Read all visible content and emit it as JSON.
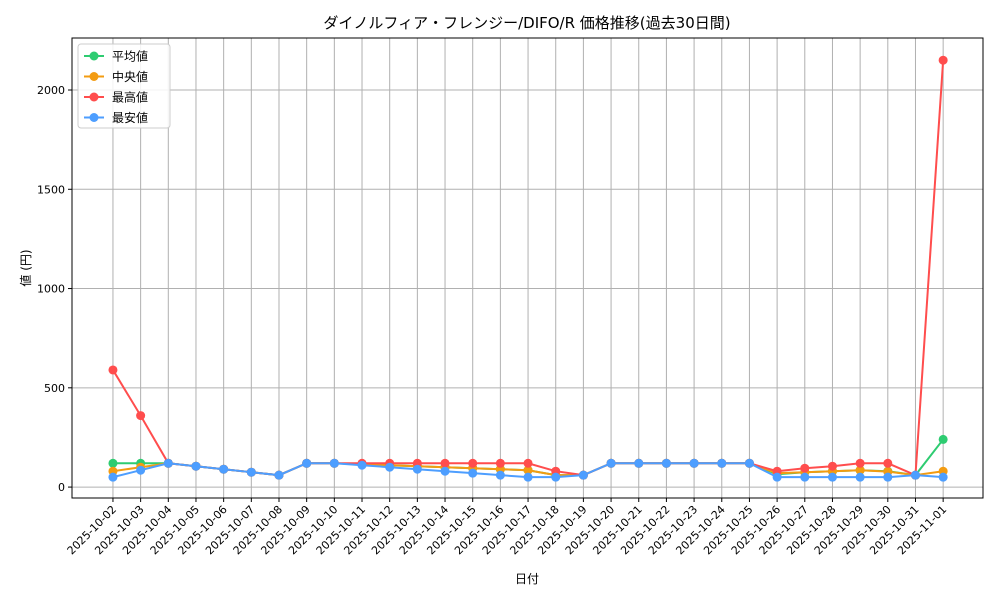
{
  "chart_data": {
    "type": "line",
    "title": "ダイノルフィア・フレンジー/DIFO/R 価格推移(過去30日間)",
    "xlabel": "日付",
    "ylabel": "値 (円)",
    "ylim": [
      -55,
      2262
    ],
    "yticks": [
      0,
      500,
      1000,
      1500,
      2000
    ],
    "grid": true,
    "legend_position": "top-left",
    "x": [
      "2025-10-02",
      "2025-10-03",
      "2025-10-04",
      "2025-10-05",
      "2025-10-06",
      "2025-10-07",
      "2025-10-08",
      "2025-10-09",
      "2025-10-10",
      "2025-10-11",
      "2025-10-12",
      "2025-10-13",
      "2025-10-14",
      "2025-10-15",
      "2025-10-16",
      "2025-10-17",
      "2025-10-18",
      "2025-10-19",
      "2025-10-20",
      "2025-10-21",
      "2025-10-22",
      "2025-10-23",
      "2025-10-24",
      "2025-10-25",
      "2025-10-26",
      "2025-10-27",
      "2025-10-28",
      "2025-10-29",
      "2025-10-30",
      "2025-10-31",
      "2025-11-01"
    ],
    "series": [
      {
        "name": "平均値",
        "color": "#2ecc71",
        "values": [
          120,
          120,
          120,
          105,
          90,
          75,
          60,
          120,
          120,
          115,
          110,
          105,
          100,
          95,
          90,
          85,
          60,
          60,
          120,
          120,
          120,
          120,
          120,
          120,
          65,
          75,
          80,
          85,
          80,
          60,
          240
        ]
      },
      {
        "name": "中央値",
        "color": "#f39c12",
        "values": [
          80,
          100,
          120,
          105,
          90,
          75,
          60,
          120,
          120,
          115,
          110,
          105,
          100,
          95,
          90,
          85,
          60,
          60,
          120,
          120,
          120,
          120,
          120,
          120,
          70,
          75,
          80,
          85,
          78,
          60,
          80
        ]
      },
      {
        "name": "最高値",
        "color": "#ff4d4d",
        "values": [
          590,
          360,
          120,
          105,
          90,
          75,
          60,
          120,
          120,
          120,
          120,
          120,
          120,
          120,
          120,
          120,
          80,
          60,
          120,
          120,
          120,
          120,
          120,
          120,
          80,
          95,
          105,
          120,
          120,
          60,
          2150
        ]
      },
      {
        "name": "最安値",
        "color": "#4d9eff",
        "values": [
          50,
          85,
          120,
          105,
          90,
          75,
          60,
          120,
          120,
          110,
          100,
          90,
          80,
          70,
          60,
          50,
          50,
          60,
          120,
          120,
          120,
          120,
          120,
          120,
          50,
          50,
          50,
          50,
          50,
          60,
          50
        ]
      }
    ]
  }
}
